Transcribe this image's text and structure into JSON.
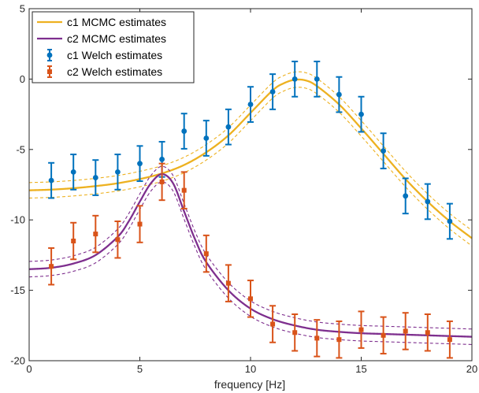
{
  "chart_data": {
    "type": "line",
    "xlabel": "frequency [Hz]",
    "ylabel": "",
    "xlim": [
      0,
      20
    ],
    "ylim": [
      -20,
      5
    ],
    "xticks": [
      0,
      5,
      10,
      15,
      20
    ],
    "yticks": [
      -20,
      -15,
      -10,
      -5,
      0,
      5
    ],
    "grid": false,
    "legend_position": "top-left",
    "legend": [
      {
        "name": "c1 MCMC estimates",
        "kind": "line",
        "color": "#EDB120"
      },
      {
        "name": "c2 MCMC estimates",
        "kind": "line",
        "color": "#7E2F8E"
      },
      {
        "name": "c1 Welch estimates",
        "kind": "errorbar",
        "color": "#0072BD"
      },
      {
        "name": "c2 Welch estimates",
        "kind": "errorbar",
        "color": "#D95319"
      }
    ],
    "mcmc_curves": [
      {
        "name": "c1 MCMC estimates",
        "color": "#EDB120",
        "x": [
          0,
          1,
          2,
          3,
          4,
          5,
          6,
          7,
          8,
          9,
          10,
          11,
          11.5,
          12,
          12.5,
          13,
          14,
          15,
          16,
          17,
          18,
          19,
          20
        ],
        "y": [
          -7.9,
          -7.85,
          -7.75,
          -7.6,
          -7.4,
          -7.1,
          -6.7,
          -6.1,
          -5.2,
          -4.0,
          -2.4,
          -0.8,
          -0.3,
          -0.05,
          -0.1,
          -0.5,
          -1.8,
          -3.5,
          -5.3,
          -7.1,
          -8.7,
          -10.1,
          -11.3
        ],
        "band_offset": 0.55
      },
      {
        "name": "c2 MCMC estimates",
        "color": "#7E2F8E",
        "x": [
          0,
          1,
          2,
          3,
          4,
          4.5,
          5,
          5.5,
          6,
          6.5,
          7,
          7.5,
          8,
          9,
          10,
          11,
          12,
          13,
          14,
          15,
          16,
          17,
          18,
          19,
          20
        ],
        "y": [
          -13.5,
          -13.4,
          -13.1,
          -12.5,
          -11.2,
          -10.1,
          -8.7,
          -7.4,
          -6.75,
          -7.4,
          -9.4,
          -11.4,
          -13.0,
          -15.0,
          -16.3,
          -17.05,
          -17.5,
          -17.8,
          -17.95,
          -18.05,
          -18.1,
          -18.15,
          -18.2,
          -18.25,
          -18.3
        ],
        "band_offset": 0.55
      }
    ],
    "welch_series": [
      {
        "name": "c1 Welch estimates",
        "color": "#0072BD",
        "marker": "circle",
        "x": [
          1,
          2,
          3,
          4,
          5,
          6,
          7,
          8,
          9,
          10,
          11,
          12,
          13,
          14,
          15,
          16,
          17,
          18,
          19
        ],
        "y": [
          -7.2,
          -6.6,
          -7.0,
          -6.6,
          -6.0,
          -5.7,
          -3.7,
          -4.2,
          -3.4,
          -1.8,
          -0.9,
          0.0,
          0.0,
          -1.1,
          -2.5,
          -5.1,
          -8.3,
          -8.7,
          -10.1
        ],
        "err": [
          1.25,
          1.25,
          1.25,
          1.25,
          1.25,
          1.25,
          1.25,
          1.25,
          1.25,
          1.25,
          1.25,
          1.25,
          1.25,
          1.25,
          1.25,
          1.25,
          1.25,
          1.25,
          1.25
        ]
      },
      {
        "name": "c2 Welch estimates",
        "color": "#D95319",
        "marker": "square",
        "x": [
          1,
          2,
          3,
          4,
          5,
          6,
          7,
          8,
          9,
          10,
          11,
          12,
          13,
          14,
          15,
          16,
          17,
          18,
          19
        ],
        "y": [
          -13.3,
          -11.5,
          -11.0,
          -11.4,
          -10.3,
          -7.3,
          -7.9,
          -12.4,
          -14.5,
          -15.6,
          -17.4,
          -18.0,
          -18.4,
          -18.5,
          -17.8,
          -18.2,
          -17.9,
          -18.0,
          -18.5
        ],
        "err": [
          1.3,
          1.3,
          1.3,
          1.3,
          1.3,
          1.3,
          1.3,
          1.3,
          1.3,
          1.3,
          1.3,
          1.3,
          1.3,
          1.3,
          1.3,
          1.3,
          1.3,
          1.3,
          1.3
        ]
      }
    ]
  }
}
